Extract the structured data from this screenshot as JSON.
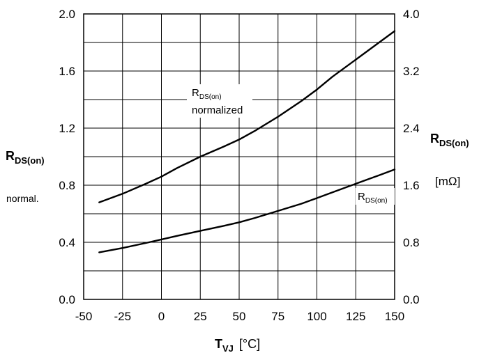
{
  "chart_data": {
    "type": "line",
    "x_axis": {
      "label_main": "T",
      "label_sub": "VJ",
      "unit": "[°C]",
      "range": [
        -50,
        150
      ],
      "ticks": [
        -50,
        -25,
        0,
        25,
        50,
        75,
        100,
        125,
        150
      ],
      "tick_labels": [
        "-50",
        "-25",
        "0",
        "25",
        "50",
        "75",
        "100",
        "125",
        "150"
      ]
    },
    "y_left": {
      "label_main": "R",
      "label_sub": "DS(on)",
      "label_2": "normal.",
      "range": [
        0.0,
        2.0
      ],
      "ticks": [
        0.0,
        0.4,
        0.8,
        1.2,
        1.6,
        2.0
      ],
      "tick_labels": [
        "0.0",
        "0.4",
        "0.8",
        "1.2",
        "1.6",
        "2.0"
      ]
    },
    "y_right": {
      "label_main": "R",
      "label_sub": "DS(on)",
      "unit": "[mΩ]",
      "range": [
        0.0,
        4.0
      ],
      "ticks": [
        0.0,
        0.8,
        1.6,
        2.4,
        3.2,
        4.0
      ],
      "tick_labels": [
        "0.0",
        "0.8",
        "1.6",
        "2.4",
        "3.2",
        "4.0"
      ]
    },
    "grid": true,
    "series": [
      {
        "name_main": "R",
        "name_sub": "DS(on)",
        "name_line2": "normalized",
        "axis": "left",
        "x": [
          -40,
          -25,
          -10,
          0,
          10,
          25,
          40,
          50,
          60,
          75,
          90,
          100,
          110,
          125,
          140,
          150
        ],
        "y": [
          0.68,
          0.74,
          0.81,
          0.86,
          0.92,
          1.0,
          1.07,
          1.12,
          1.18,
          1.28,
          1.39,
          1.47,
          1.56,
          1.68,
          1.8,
          1.88
        ]
      },
      {
        "name_main": "R",
        "name_sub": "DS(on)",
        "axis": "right",
        "x": [
          -40,
          -25,
          -10,
          0,
          10,
          25,
          40,
          50,
          60,
          75,
          90,
          100,
          110,
          125,
          140,
          150
        ],
        "y": [
          0.66,
          0.72,
          0.79,
          0.84,
          0.89,
          0.96,
          1.03,
          1.08,
          1.14,
          1.24,
          1.34,
          1.42,
          1.5,
          1.62,
          1.74,
          1.82
        ]
      }
    ]
  }
}
